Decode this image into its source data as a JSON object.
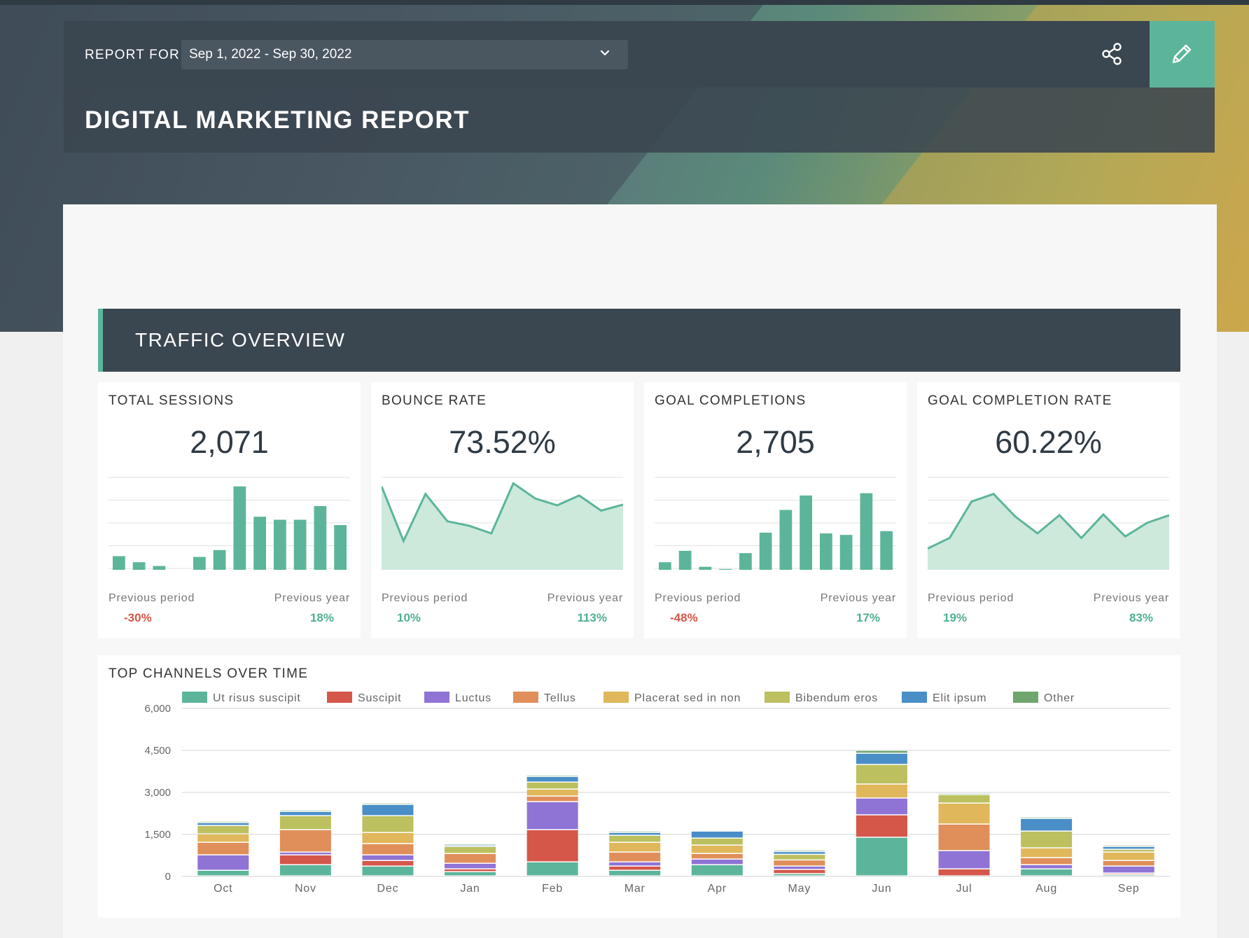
{
  "header": {
    "report_for_label": "REPORT FOR",
    "date_range": "Sep 1, 2022 - Sep 30, 2022",
    "title": "DIGITAL MARKETING REPORT"
  },
  "section": {
    "title": "TRAFFIC OVERVIEW"
  },
  "colors": {
    "accent": "#5cb59a",
    "dark": "#3a4650",
    "negative": "#d4574a",
    "positive": "#4fb08f"
  },
  "kpis": [
    {
      "title": "TOTAL SESSIONS",
      "value": "2,071",
      "prev_period_label": "Previous period",
      "prev_year_label": "Previous year",
      "prev_period": "-30%",
      "prev_year": "18%",
      "prev_period_neg": true,
      "prev_year_neg": false,
      "spark_type": "bar",
      "spark": [
        18,
        10,
        5,
        0,
        17,
        26,
        110,
        70,
        66,
        66,
        84,
        59
      ]
    },
    {
      "title": "BOUNCE RATE",
      "value": "73.52%",
      "prev_period_label": "Previous period",
      "prev_year_label": "Previous year",
      "prev_period": "10%",
      "prev_year": "113%",
      "prev_period_neg": false,
      "prev_year_neg": false,
      "spark_type": "area",
      "spark": [
        110,
        38,
        100,
        64,
        58,
        48,
        114,
        94,
        85,
        98,
        78,
        86
      ]
    },
    {
      "title": "GOAL COMPLETIONS",
      "value": "2,705",
      "prev_period_label": "Previous period",
      "prev_year_label": "Previous year",
      "prev_period": "-48%",
      "prev_year": "17%",
      "prev_period_neg": true,
      "prev_year_neg": false,
      "spark_type": "bar",
      "spark": [
        10,
        25,
        4,
        1,
        22,
        49,
        79,
        98,
        48,
        46,
        101,
        51
      ]
    },
    {
      "title": "GOAL COMPLETION RATE",
      "value": "60.22%",
      "prev_period_label": "Previous period",
      "prev_year_label": "Previous year",
      "prev_period": "19%",
      "prev_year": "83%",
      "prev_period_neg": false,
      "prev_year_neg": false,
      "spark_type": "area",
      "spark": [
        28,
        42,
        90,
        100,
        70,
        48,
        72,
        42,
        73,
        44,
        62,
        72
      ]
    }
  ],
  "chart_data": {
    "type": "bar",
    "stacked": true,
    "title": "TOP CHANNELS OVER TIME",
    "categories": [
      "Oct",
      "Nov",
      "Dec",
      "Jan",
      "Feb",
      "Mar",
      "Apr",
      "May",
      "Jun",
      "Jul",
      "Aug",
      "Sep"
    ],
    "ylim": [
      0,
      6000
    ],
    "yticks": [
      0,
      1500,
      3000,
      4500,
      6000
    ],
    "ytick_labels": [
      "0",
      "1,500",
      "3,000",
      "4,500",
      "6,000"
    ],
    "legend_position": "top",
    "series": [
      {
        "name": "Ut risus suscipit",
        "color": "#5cb59a",
        "values": [
          200,
          400,
          350,
          150,
          500,
          200,
          400,
          80,
          1380,
          0,
          250,
          50
        ]
      },
      {
        "name": "Suscipit",
        "color": "#d4574a",
        "values": [
          0,
          350,
          200,
          100,
          1150,
          150,
          0,
          150,
          800,
          250,
          0,
          50
        ]
      },
      {
        "name": "Luctus",
        "color": "#8f74d6",
        "values": [
          550,
          100,
          200,
          200,
          1000,
          150,
          200,
          120,
          600,
          650,
          150,
          250
        ]
      },
      {
        "name": "Tellus",
        "color": "#e08f5a",
        "values": [
          450,
          800,
          400,
          350,
          200,
          350,
          200,
          220,
          0,
          950,
          250,
          200
        ]
      },
      {
        "name": "Placerat sed in non",
        "color": "#e0b75a",
        "values": [
          300,
          0,
          400,
          0,
          250,
          350,
          300,
          0,
          500,
          750,
          350,
          300
        ]
      },
      {
        "name": "Bibendum eros",
        "color": "#bcc05e",
        "values": [
          300,
          500,
          600,
          250,
          250,
          250,
          250,
          200,
          700,
          300,
          600,
          100
        ]
      },
      {
        "name": "Elit ipsum",
        "color": "#4a8ec7",
        "values": [
          100,
          150,
          400,
          50,
          200,
          100,
          250,
          100,
          400,
          0,
          450,
          100
        ]
      },
      {
        "name": "Other",
        "color": "#6ea66e",
        "values": [
          50,
          50,
          50,
          50,
          50,
          50,
          0,
          50,
          100,
          50,
          50,
          50
        ]
      }
    ]
  }
}
